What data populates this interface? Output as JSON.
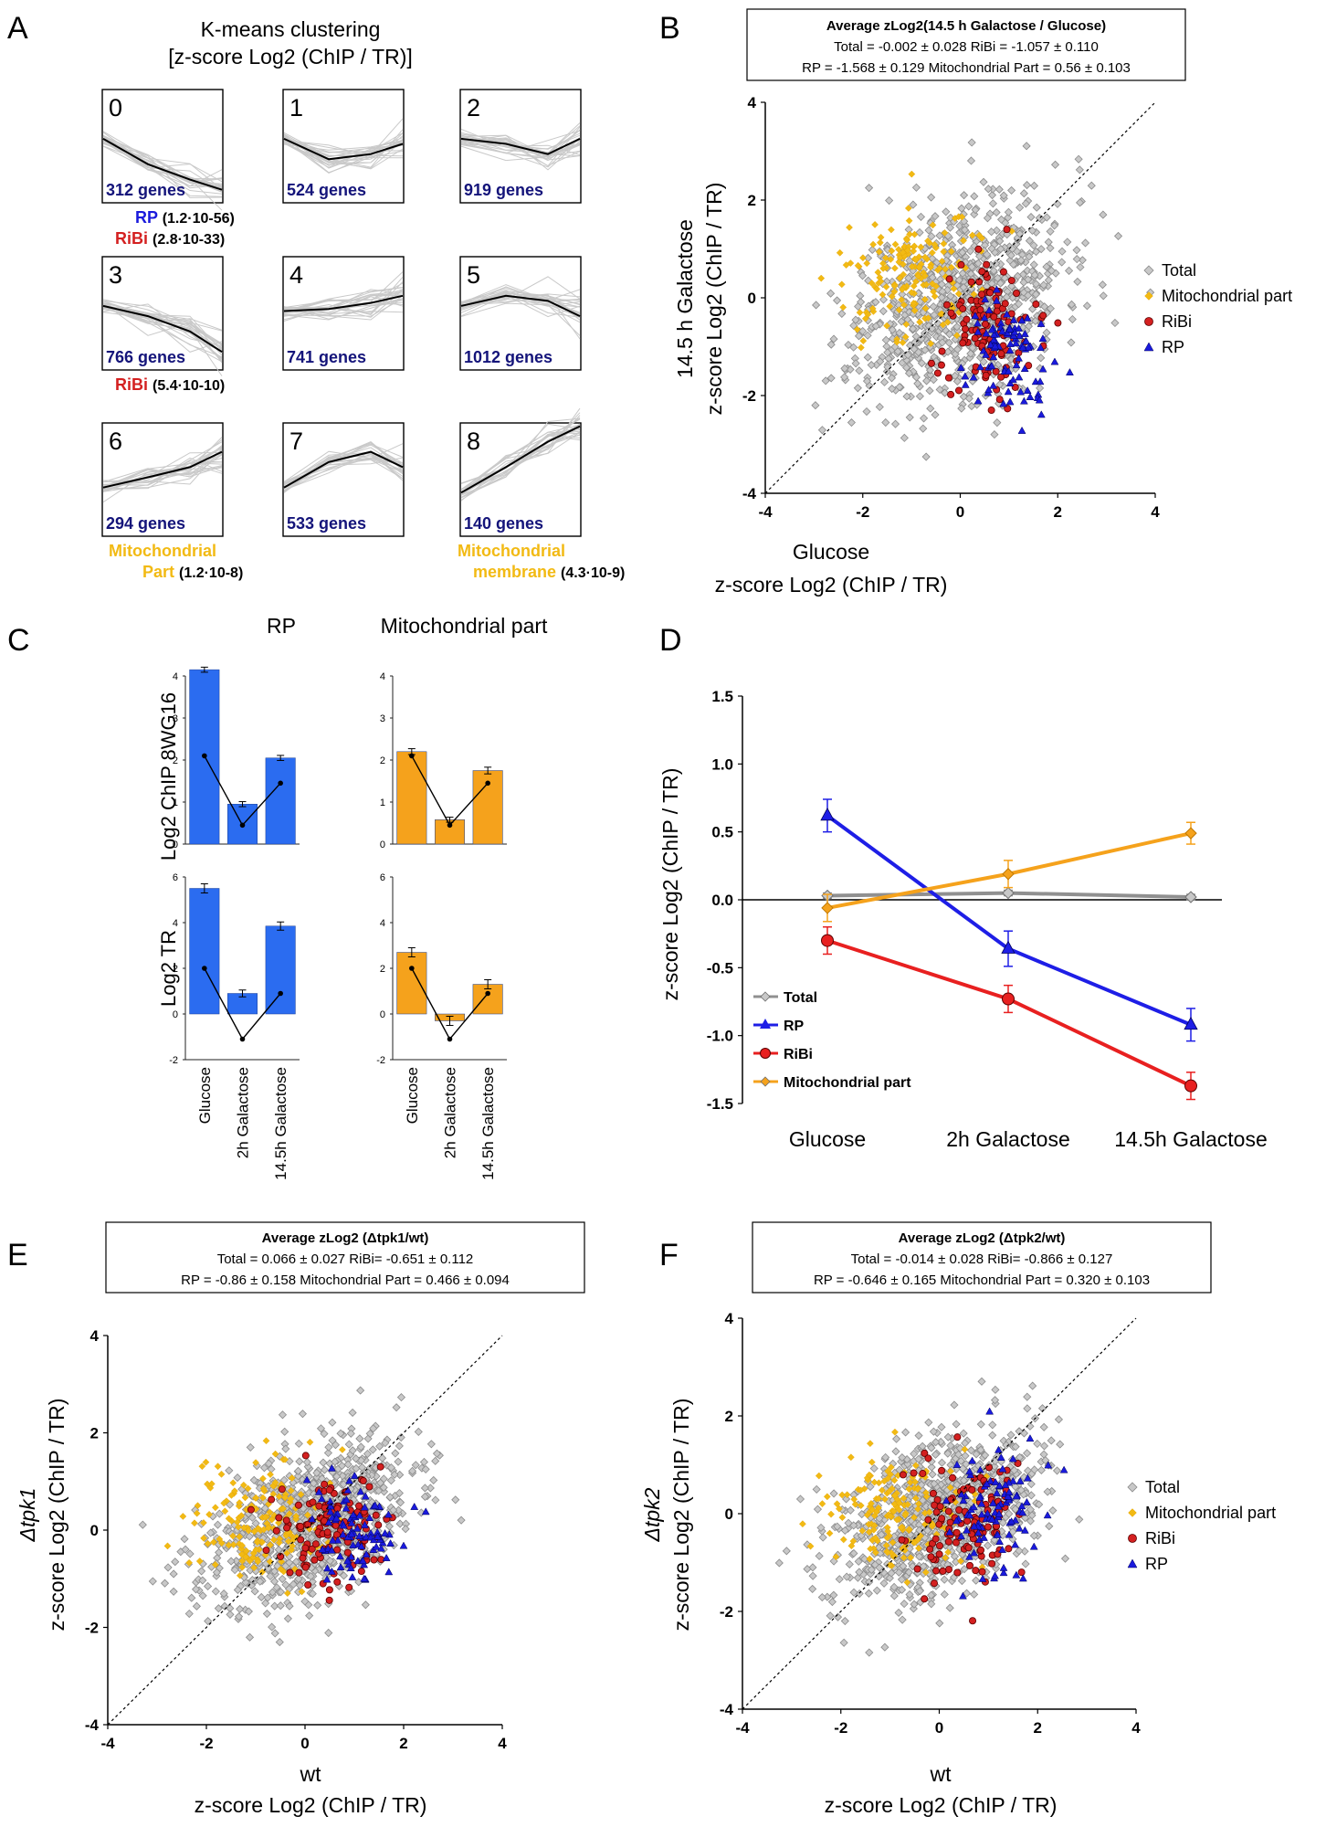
{
  "colors": {
    "rp": "#1a1adc",
    "ribi": "#d42020",
    "mito": "#f2ba14",
    "total_fill": "#c8c8c8",
    "total_edge": "#8a8a8a",
    "line_rp": "#1e1ee6",
    "line_ribi": "#e82020",
    "line_mito": "#f5a21c",
    "line_total": "#909090",
    "gene_count": "#14147a",
    "bar_rp": "#2b6cf0",
    "bar_mito": "#f5a21c"
  },
  "panel_letters": {
    "a": "A",
    "b": "B",
    "c": "C",
    "d": "D",
    "e": "E",
    "f": "F"
  },
  "panel_a": {
    "title_line1": "K-means clustering",
    "title_line2": "[z-score Log2 (ChIP / TR)]",
    "clusters": [
      {
        "id": "0",
        "genes": "312 genes",
        "annotations": [
          {
            "term": "RP",
            "p": "(1.2·10-56)",
            "color": "rp"
          },
          {
            "term": "RiBi",
            "p": "(2.8·10-33)",
            "color": "ribi"
          }
        ],
        "profile": [
          0.25,
          0.0,
          -0.15,
          -0.25
        ]
      },
      {
        "id": "1",
        "genes": "524 genes",
        "annotations": [],
        "profile": [
          0.25,
          0.05,
          0.1,
          0.2
        ]
      },
      {
        "id": "2",
        "genes": "919 genes",
        "annotations": [],
        "profile": [
          0.25,
          0.2,
          0.1,
          0.25
        ]
      },
      {
        "id": "3",
        "genes": "766 genes",
        "annotations": [
          {
            "term": "RiBi",
            "p": "(5.4·10-10)",
            "color": "ribi"
          }
        ],
        "profile": [
          0.25,
          0.15,
          0.0,
          -0.2
        ]
      },
      {
        "id": "4",
        "genes": "741 genes",
        "annotations": [],
        "profile": [
          0.2,
          0.22,
          0.28,
          0.35
        ]
      },
      {
        "id": "5",
        "genes": "1012 genes",
        "annotations": [],
        "profile": [
          0.25,
          0.35,
          0.3,
          0.15
        ]
      },
      {
        "id": "6",
        "genes": "294 genes",
        "annotations": [
          {
            "term": "Mitochondrial Part",
            "p": "(1.2·10-8)",
            "color": "mito"
          }
        ],
        "profile": [
          0.1,
          0.2,
          0.3,
          0.45
        ]
      },
      {
        "id": "7",
        "genes": "533 genes",
        "annotations": [],
        "profile": [
          0.1,
          0.35,
          0.45,
          0.3
        ]
      },
      {
        "id": "8",
        "genes": "140 genes",
        "annotations": [
          {
            "term": "Mitochondrial membrane",
            "p": "(4.3·10-9)",
            "color": "mito"
          }
        ],
        "profile": [
          0.05,
          0.3,
          0.55,
          0.7
        ]
      }
    ]
  },
  "panel_b": {
    "box_title": "Average zLog2(14.5 h Galactose / Glucose)",
    "box_line2": "Total = -0.002 ± 0.028      RiBi = -1.057 ± 0.110",
    "box_line3": "RP = -1.568 ± 0.129 Mitochondrial Part = 0.56 ± 0.103",
    "xlabel1": "Glucose",
    "xlabel2": "z-score Log2 (ChIP / TR)",
    "ylabel1": "14.5 h Galactose",
    "ylabel2": "z-score Log2 (ChIP / TR)",
    "legend": [
      "Total",
      "Mitochondrial part",
      "RiBi",
      "RP"
    ]
  },
  "panel_c": {
    "col_rp": "RP",
    "col_mito": "Mitochondrial part",
    "ylabel_top": "Log2 ChIP 8WG16",
    "ylabel_bottom": "Log2 TR",
    "categories": [
      "Glucose",
      "2h Galactose",
      "14.5h Galactose"
    ],
    "y_ticks_top": [
      "4",
      "3",
      "2",
      "1",
      "0"
    ],
    "y_ticks_bottom": [
      "6",
      "4",
      "2",
      "0",
      "-2"
    ]
  },
  "panel_d": {
    "ylabel": "z-score Log2 (ChIP / TR)",
    "legend": [
      "Total",
      "RP",
      "RiBi",
      "Mitochondrial part"
    ]
  },
  "panel_e": {
    "box_title": "Average zLog2 (Δtpk1/wt)",
    "box_line2": "Total = 0.066 ± 0.027      RiBi= -0.651 ± 0.112",
    "box_line3": "RP = -0.86 ± 0.158   Mitochondrial Part = 0.466 ± 0.094",
    "xlabel1": "wt",
    "xlabel2": "z-score Log2 (ChIP / TR)",
    "ylabel1": "Δtpk1",
    "ylabel2": "z-score Log2 (ChIP / TR)"
  },
  "panel_f": {
    "box_title": "Average zLog2 (Δtpk2/wt)",
    "box_line2": "Total = -0.014 ± 0.028      RiBi= -0.866 ± 0.127",
    "box_line3": "RP = -0.646 ± 0.165   Mitochondrial Part = 0.320 ± 0.103",
    "xlabel1": "wt",
    "xlabel2": "z-score Log2 (ChIP / TR)",
    "ylabel1": "Δtpk2",
    "ylabel2": "z-score Log2 (ChIP / TR)",
    "legend": [
      "Total",
      "Mitochondrial part",
      "RiBi",
      "RP"
    ]
  },
  "chart_data": [
    {
      "panel": "B",
      "type": "scatter",
      "xlabel": "Glucose z-score Log2 (ChIP / TR)",
      "ylabel": "14.5 h Galactose z-score Log2 (ChIP / TR)",
      "xlim": [
        -4,
        4
      ],
      "ylim": [
        -4,
        4
      ],
      "x_ticks": [
        -4,
        -2,
        0,
        2,
        4
      ],
      "y_ticks": [
        -4,
        -2,
        0,
        2,
        4
      ],
      "diagonal": true,
      "legend_position": "right",
      "series": [
        {
          "name": "Total",
          "center": [
            0.0,
            0.0
          ],
          "spread": [
            1.05,
            1.0
          ]
        },
        {
          "name": "Mitochondrial part",
          "center": [
            -1.0,
            0.5
          ],
          "spread": [
            0.7,
            0.7
          ]
        },
        {
          "name": "RiBi",
          "center": [
            0.6,
            -0.6
          ],
          "spread": [
            0.5,
            0.7
          ]
        },
        {
          "name": "RP",
          "center": [
            1.0,
            -1.1
          ],
          "spread": [
            0.45,
            0.6
          ]
        }
      ]
    },
    {
      "panel": "C",
      "type": "bar",
      "categories": [
        "Glucose",
        "2h Galactose",
        "14.5h Galactose"
      ],
      "series": [
        {
          "name": "RP",
          "measure": "Log2 ChIP 8WG16",
          "values": [
            4.15,
            0.95,
            2.05
          ],
          "errors": [
            0.06,
            0.06,
            0.06
          ],
          "overlay": [
            2.1,
            0.45,
            1.45
          ],
          "ylim": [
            0,
            4
          ]
        },
        {
          "name": "Mitochondrial part",
          "measure": "Log2 ChIP 8WG16",
          "values": [
            2.2,
            0.58,
            1.75
          ],
          "errors": [
            0.07,
            0.06,
            0.08
          ],
          "overlay": [
            2.1,
            0.45,
            1.45
          ],
          "ylim": [
            0,
            4
          ]
        },
        {
          "name": "RP",
          "measure": "Log2 TR",
          "values": [
            5.5,
            0.9,
            3.85
          ],
          "errors": [
            0.2,
            0.15,
            0.18
          ],
          "overlay": [
            2.0,
            -1.1,
            0.9
          ],
          "ylim": [
            -2,
            6
          ]
        },
        {
          "name": "Mitochondrial part",
          "measure": "Log2 TR",
          "values": [
            2.7,
            -0.3,
            1.3
          ],
          "errors": [
            0.2,
            0.2,
            0.2
          ],
          "overlay": [
            2.0,
            -1.1,
            0.9
          ],
          "ylim": [
            -2,
            6
          ]
        }
      ]
    },
    {
      "panel": "D",
      "type": "line",
      "categories": [
        "Glucose",
        "2h Galactose",
        "14.5h Galactose"
      ],
      "ylabel": "z-score Log2 (ChIP / TR)",
      "ylim": [
        -1.5,
        1.5
      ],
      "y_ticks": [
        1.5,
        1.0,
        0.5,
        0.0,
        -0.5,
        -1.0,
        -1.5
      ],
      "legend_position": "bottom-left",
      "series": [
        {
          "name": "Total",
          "values": [
            0.03,
            0.05,
            0.02
          ],
          "errors": [
            0.02,
            0.02,
            0.02
          ]
        },
        {
          "name": "RP",
          "values": [
            0.62,
            -0.36,
            -0.92
          ],
          "errors": [
            0.12,
            0.13,
            0.12
          ]
        },
        {
          "name": "RiBi",
          "values": [
            -0.3,
            -0.73,
            -1.37
          ],
          "errors": [
            0.1,
            0.1,
            0.1
          ]
        },
        {
          "name": "Mitochondrial part",
          "values": [
            -0.06,
            0.19,
            0.49
          ],
          "errors": [
            0.1,
            0.1,
            0.08
          ]
        }
      ]
    },
    {
      "panel": "E",
      "type": "scatter",
      "xlabel": "wt z-score Log2 (ChIP / TR)",
      "ylabel": "Δtpk1 z-score Log2 (ChIP / TR)",
      "xlim": [
        -4,
        4
      ],
      "ylim": [
        -4,
        4
      ],
      "x_ticks": [
        -4,
        -2,
        0,
        2,
        4
      ],
      "y_ticks": [
        -4,
        -2,
        0,
        2,
        4
      ],
      "diagonal": true,
      "series": [
        {
          "name": "Total",
          "center": [
            0.0,
            0.1
          ],
          "spread": [
            1.05,
            0.75
          ]
        },
        {
          "name": "Mitochondrial part",
          "center": [
            -1.0,
            0.2
          ],
          "spread": [
            0.65,
            0.6
          ]
        },
        {
          "name": "RiBi",
          "center": [
            0.6,
            0.0
          ],
          "spread": [
            0.6,
            0.6
          ]
        },
        {
          "name": "RP",
          "center": [
            1.1,
            0.0
          ],
          "spread": [
            0.45,
            0.55
          ]
        }
      ]
    },
    {
      "panel": "F",
      "type": "scatter",
      "xlabel": "wt z-score Log2 (ChIP / TR)",
      "ylabel": "Δtpk2 z-score Log2 (ChIP / TR)",
      "xlim": [
        -4,
        4
      ],
      "ylim": [
        -4,
        4
      ],
      "x_ticks": [
        -4,
        -2,
        0,
        2,
        4
      ],
      "y_ticks": [
        -4,
        -2,
        0,
        2,
        4
      ],
      "diagonal": true,
      "legend_position": "right",
      "series": [
        {
          "name": "Total",
          "center": [
            0.0,
            0.0
          ],
          "spread": [
            1.0,
            0.8
          ]
        },
        {
          "name": "Mitochondrial part",
          "center": [
            -0.9,
            0.0
          ],
          "spread": [
            0.65,
            0.6
          ]
        },
        {
          "name": "RiBi",
          "center": [
            0.5,
            -0.2
          ],
          "spread": [
            0.55,
            0.65
          ]
        },
        {
          "name": "RP",
          "center": [
            1.1,
            0.1
          ],
          "spread": [
            0.45,
            0.7
          ]
        }
      ]
    }
  ]
}
